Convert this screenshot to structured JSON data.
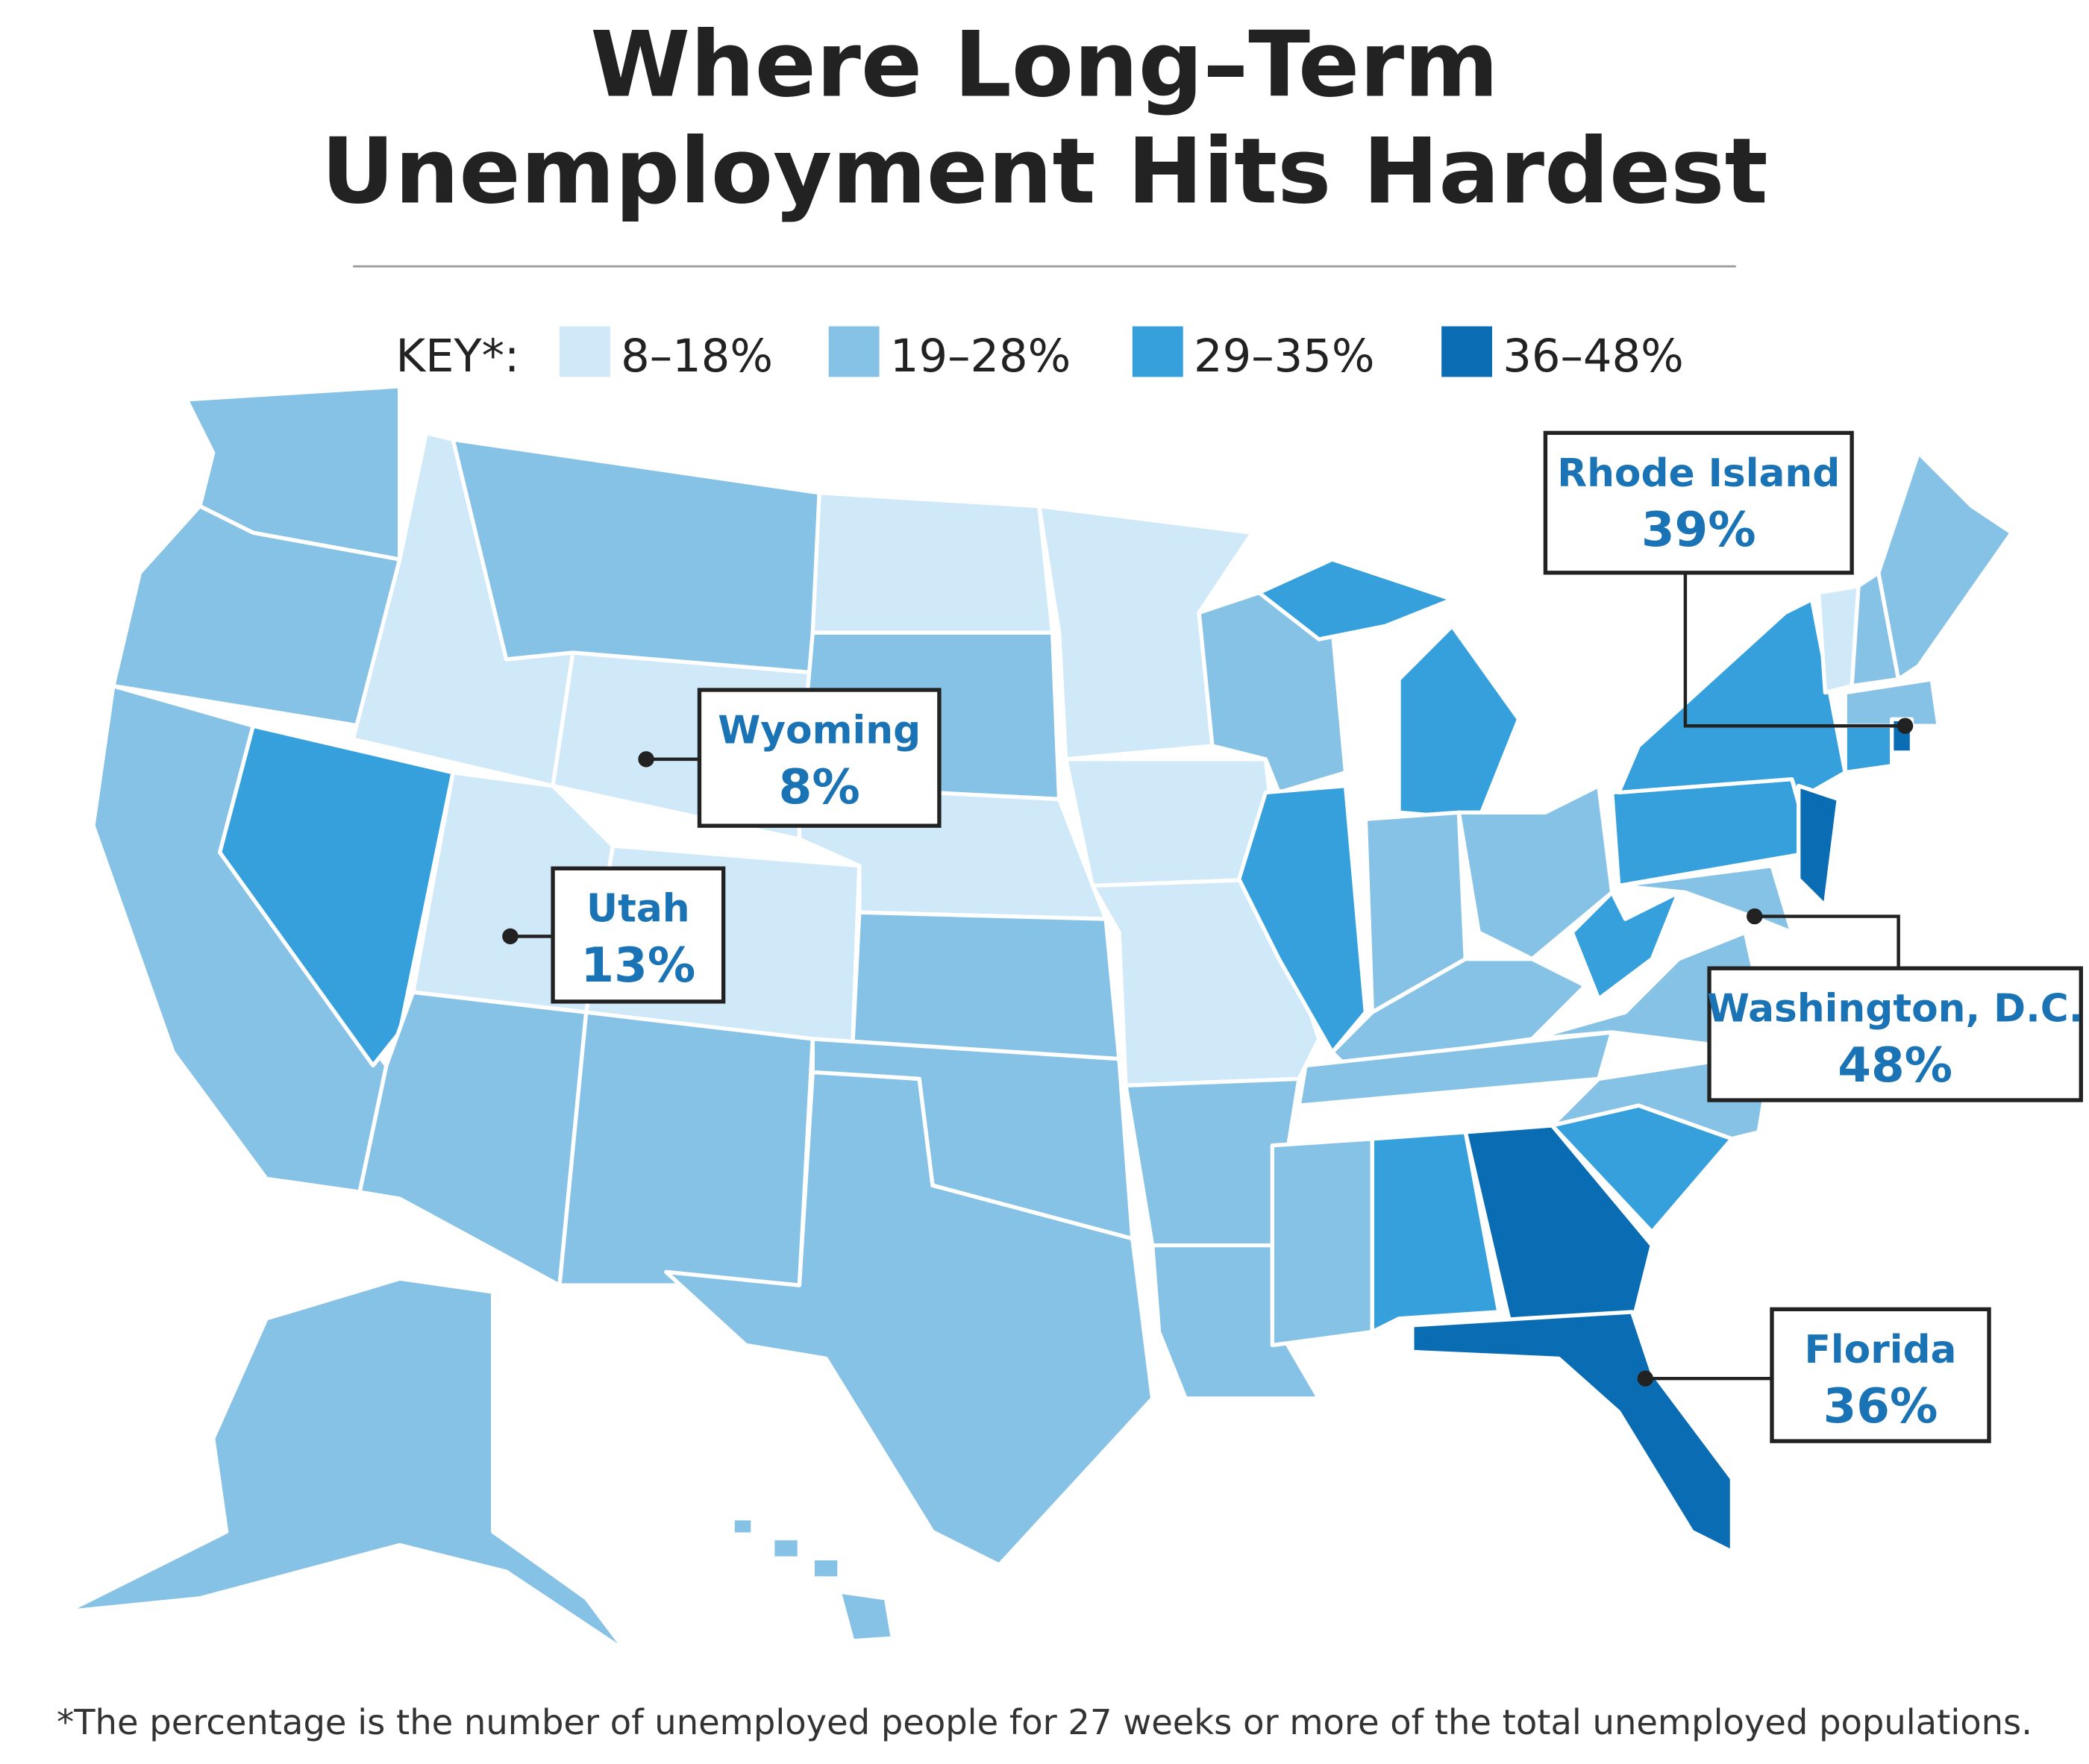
{
  "title": [
    "Where Long–Term",
    "Unemployment Hits Hardest"
  ],
  "key_label": "KEY*:",
  "legend": [
    {
      "label": "8–18%",
      "color": "#cfe9f8"
    },
    {
      "label": "19–28%",
      "color": "#86c2e6"
    },
    {
      "label": "29–35%",
      "color": "#35a0dc"
    },
    {
      "label": "36–48%",
      "color": "#0a6db3"
    }
  ],
  "callouts": [
    {
      "name": "Rhode Island",
      "value": "39%"
    },
    {
      "name": "Wyoming",
      "value": "8%"
    },
    {
      "name": "Utah",
      "value": "13%"
    },
    {
      "name": "Washington, D.C.",
      "value": "48%"
    },
    {
      "name": "Florida",
      "value": "36%"
    }
  ],
  "footnote": "*The percentage is the number of unemployed people for 27 weeks or more of the total unemployed populations."
}
